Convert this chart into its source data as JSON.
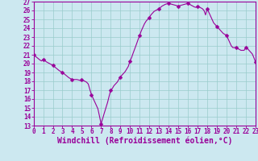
{
  "x_hourly": [
    0,
    1,
    2,
    3,
    4,
    5,
    6,
    7,
    8,
    9,
    10,
    11,
    12,
    13,
    14,
    15,
    16,
    17,
    18,
    19,
    20,
    21,
    22,
    23
  ],
  "y_hourly": [
    21.0,
    20.5,
    19.8,
    19.0,
    18.2,
    18.2,
    16.5,
    13.2,
    17.0,
    18.5,
    20.3,
    23.2,
    25.2,
    26.2,
    26.8,
    26.5,
    26.8,
    26.5,
    26.2,
    24.2,
    23.2,
    21.8,
    21.8,
    20.2
  ],
  "x_dense": [
    0.0,
    0.17,
    0.33,
    0.5,
    0.67,
    0.83,
    1.0,
    1.17,
    1.33,
    1.5,
    1.67,
    1.83,
    2.0,
    2.17,
    2.33,
    2.5,
    2.67,
    2.83,
    3.0,
    3.17,
    3.33,
    3.5,
    3.67,
    3.83,
    4.0,
    4.17,
    4.33,
    4.5,
    4.67,
    4.83,
    5.0,
    5.17,
    5.33,
    5.5,
    5.67,
    5.83,
    6.0,
    6.17,
    6.33,
    6.5,
    6.67,
    6.83,
    7.0,
    7.17,
    7.33,
    7.5,
    7.67,
    7.83,
    8.0,
    8.17,
    8.33,
    8.5,
    8.67,
    8.83,
    9.0,
    9.17,
    9.33,
    9.5,
    9.67,
    9.83,
    10.0,
    10.17,
    10.33,
    10.5,
    10.67,
    10.83,
    11.0,
    11.17,
    11.33,
    11.5,
    11.67,
    11.83,
    12.0,
    12.17,
    12.33,
    12.5,
    12.67,
    12.83,
    13.0,
    13.17,
    13.33,
    13.5,
    13.67,
    13.83,
    14.0,
    14.17,
    14.33,
    14.5,
    14.67,
    14.83,
    15.0,
    15.17,
    15.33,
    15.5,
    15.67,
    15.83,
    16.0,
    16.17,
    16.33,
    16.5,
    16.67,
    16.83,
    17.0,
    17.17,
    17.33,
    17.5,
    17.67,
    17.83,
    18.0,
    18.17,
    18.33,
    18.5,
    18.67,
    18.83,
    19.0,
    19.17,
    19.33,
    19.5,
    19.67,
    19.83,
    20.0,
    20.17,
    20.33,
    20.5,
    20.67,
    20.83,
    21.0,
    21.17,
    21.33,
    21.5,
    21.67,
    21.83,
    22.0,
    22.17,
    22.33,
    22.5,
    22.67,
    22.83,
    23.0
  ],
  "y_dense": [
    21.0,
    20.85,
    20.7,
    20.55,
    20.4,
    20.3,
    20.5,
    20.35,
    20.2,
    20.1,
    20.0,
    19.9,
    19.8,
    19.65,
    19.5,
    19.35,
    19.2,
    19.1,
    19.0,
    18.85,
    18.7,
    18.55,
    18.4,
    18.3,
    18.2,
    18.2,
    18.2,
    18.2,
    18.15,
    18.1,
    18.2,
    18.1,
    18.0,
    17.9,
    17.7,
    17.1,
    16.5,
    16.1,
    15.7,
    15.3,
    14.9,
    14.1,
    13.2,
    13.8,
    14.4,
    15.0,
    15.6,
    16.3,
    17.0,
    17.2,
    17.5,
    17.7,
    17.9,
    18.2,
    18.5,
    18.7,
    18.9,
    19.1,
    19.4,
    19.7,
    20.3,
    20.7,
    21.2,
    21.7,
    22.2,
    22.7,
    23.2,
    23.7,
    24.1,
    24.5,
    24.8,
    25.0,
    25.2,
    25.5,
    25.7,
    25.9,
    26.0,
    26.1,
    26.2,
    26.35,
    26.5,
    26.6,
    26.7,
    26.75,
    26.8,
    26.75,
    26.7,
    26.65,
    26.6,
    26.55,
    26.5,
    26.55,
    26.6,
    26.65,
    26.7,
    26.75,
    26.8,
    26.7,
    26.6,
    26.5,
    26.4,
    26.35,
    26.5,
    26.4,
    26.3,
    26.2,
    26.0,
    25.5,
    26.2,
    25.8,
    25.4,
    25.0,
    24.6,
    24.4,
    24.2,
    24.0,
    23.8,
    23.6,
    23.4,
    23.3,
    23.2,
    22.8,
    22.4,
    22.0,
    21.8,
    21.8,
    21.8,
    21.7,
    21.6,
    21.5,
    21.5,
    21.5,
    21.8,
    21.7,
    21.5,
    21.3,
    21.1,
    20.7,
    20.2
  ],
  "line_color": "#990099",
  "marker": "D",
  "marker_size": 2.5,
  "bg_color": "#cce8f0",
  "grid_color": "#99cccc",
  "xlabel": "Windchill (Refroidissement éolien,°C)",
  "xlabel_color": "#990099",
  "ylim": [
    13,
    27
  ],
  "xlim": [
    0,
    23
  ],
  "yticks": [
    13,
    14,
    15,
    16,
    17,
    18,
    19,
    20,
    21,
    22,
    23,
    24,
    25,
    26,
    27
  ],
  "xticks": [
    0,
    1,
    2,
    3,
    4,
    5,
    6,
    7,
    8,
    9,
    10,
    11,
    12,
    13,
    14,
    15,
    16,
    17,
    18,
    19,
    20,
    21,
    22,
    23
  ],
  "tick_color": "#990099",
  "tick_fontsize": 5.5,
  "xlabel_fontsize": 7.0,
  "spine_color": "#990099"
}
